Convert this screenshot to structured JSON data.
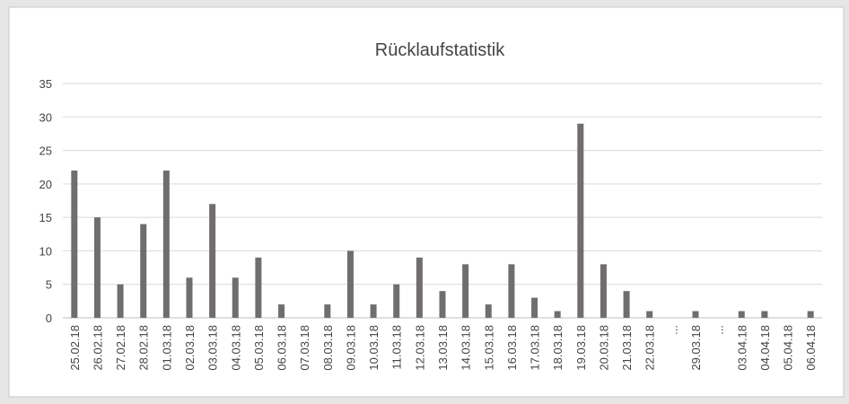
{
  "chart_data": {
    "type": "bar",
    "title": "Rücklaufstatistik",
    "categories": [
      "25.02.18",
      "26.02.18",
      "27.02.18",
      "28.02.18",
      "01.03.18",
      "02.03.18",
      "03.03.18",
      "04.03.18",
      "05.03.18",
      "06.03.18",
      "07.03.18",
      "08.03.18",
      "09.03.18",
      "10.03.18",
      "11.03.18",
      "12.03.18",
      "13.03.18",
      "14.03.18",
      "15.03.18",
      "16.03.18",
      "17.03.18",
      "18.03.18",
      "19.03.18",
      "20.03.18",
      "21.03.18",
      "22.03.18",
      "...",
      "29.03.18",
      "...",
      "03.04.18",
      "04.04.18",
      "05.04.18",
      "06.04.18"
    ],
    "values": [
      22,
      15,
      5,
      14,
      22,
      6,
      17,
      6,
      9,
      2,
      0,
      2,
      10,
      2,
      5,
      9,
      4,
      8,
      2,
      8,
      3,
      1,
      29,
      8,
      4,
      1,
      0,
      1,
      0,
      1,
      1,
      0,
      1
    ],
    "color": "#706d6d",
    "ylim": [
      0,
      35
    ],
    "yticks": [
      0,
      5,
      10,
      15,
      20,
      25,
      30,
      35
    ],
    "grid": true
  }
}
